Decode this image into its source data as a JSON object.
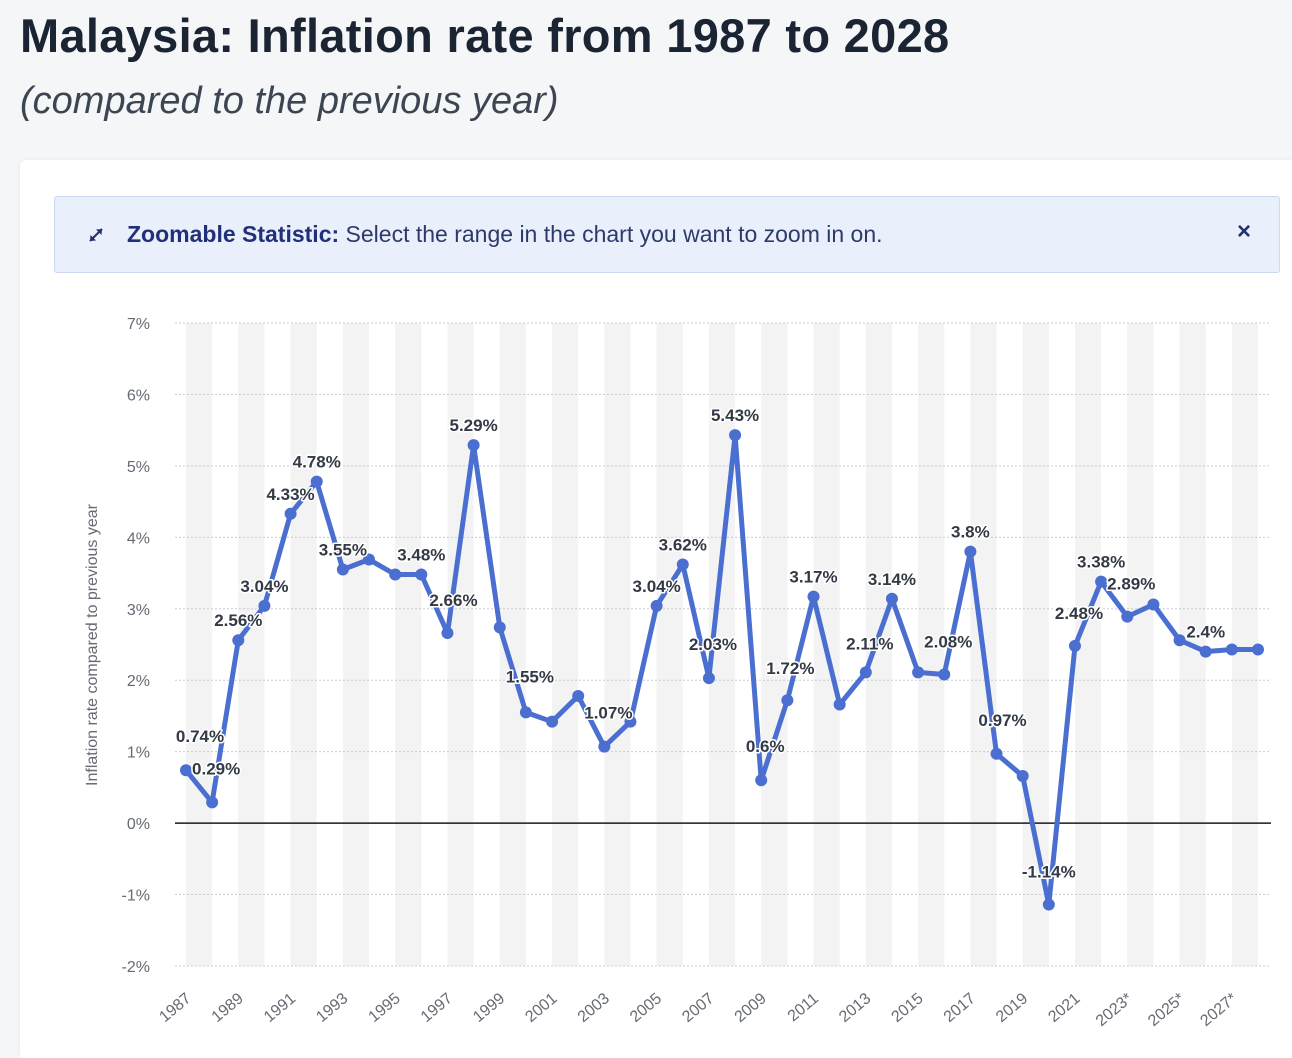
{
  "page": {
    "title": "Malaysia: Inflation rate from 1987 to 2028",
    "subtitle": "(compared to the previous year)"
  },
  "zoom_banner": {
    "icon": "expand-arrows-icon",
    "label_bold": "Zoomable Statistic:",
    "label_text": " Select the range in the chart you want to zoom in on.",
    "close_label": "×"
  },
  "colors": {
    "series": "#4a6fd1",
    "band": "#f3f3f3",
    "zero_line": "#1a1a1a",
    "banner_bg": "#eaf0fb"
  },
  "chart_data": {
    "type": "line",
    "title": "Malaysia: Inflation rate from 1987 to 2028",
    "ylabel": "Inflation rate compared to previous year",
    "xlabel": "",
    "ylim": [
      -2,
      7
    ],
    "yticks": [
      "7%",
      "6%",
      "5%",
      "4%",
      "3%",
      "2%",
      "1%",
      "0%",
      "-1%",
      "-2%"
    ],
    "yticks_values": [
      7,
      6,
      5,
      4,
      3,
      2,
      1,
      0,
      -1,
      -2
    ],
    "grid": true,
    "x": [
      1987,
      1988,
      1989,
      1990,
      1991,
      1992,
      1993,
      1994,
      1995,
      1996,
      1997,
      1998,
      1999,
      2000,
      2001,
      2002,
      2003,
      2004,
      2005,
      2006,
      2007,
      2008,
      2009,
      2010,
      2011,
      2012,
      2013,
      2014,
      2015,
      2016,
      2017,
      2018,
      2019,
      2020,
      2021,
      2022,
      2023,
      2024,
      2025,
      2026,
      2027,
      2028
    ],
    "xtick_labels": [
      "1987",
      "1989",
      "1991",
      "1993",
      "1995",
      "1997",
      "1999",
      "2001",
      "2003",
      "2005",
      "2007",
      "2009",
      "2011",
      "2013",
      "2015",
      "2017",
      "2019",
      "2021",
      "2023*",
      "2025*",
      "2027*"
    ],
    "xtick_years": [
      1987,
      1989,
      1991,
      1993,
      1995,
      1997,
      1999,
      2001,
      2003,
      2005,
      2007,
      2009,
      2011,
      2013,
      2015,
      2017,
      2019,
      2021,
      2023,
      2025,
      2027
    ],
    "series": [
      {
        "values": [
          0.74,
          0.29,
          2.56,
          3.04,
          4.33,
          4.78,
          3.55,
          3.69,
          3.48,
          3.48,
          2.66,
          5.29,
          2.74,
          1.55,
          1.42,
          1.78,
          1.07,
          1.42,
          3.04,
          3.62,
          2.03,
          5.43,
          0.6,
          1.72,
          3.17,
          1.66,
          2.11,
          3.14,
          2.11,
          2.08,
          3.8,
          0.97,
          0.66,
          -1.14,
          2.48,
          3.38,
          2.89,
          3.06,
          2.56,
          2.4,
          2.43,
          2.43
        ]
      }
    ],
    "data_labels": [
      {
        "year": 1987,
        "text": "0.74%"
      },
      {
        "year": 1988,
        "text": "0.29%"
      },
      {
        "year": 1989,
        "text": "2.56%"
      },
      {
        "year": 1990,
        "text": "3.04%"
      },
      {
        "year": 1991,
        "text": "4.33%"
      },
      {
        "year": 1992,
        "text": "4.78%"
      },
      {
        "year": 1993,
        "text": "3.55%"
      },
      {
        "year": 1996,
        "text": "3.48%"
      },
      {
        "year": 1997,
        "text": "2.66%"
      },
      {
        "year": 1998,
        "text": "5.29%"
      },
      {
        "year": 2000,
        "text": "1.55%"
      },
      {
        "year": 2003,
        "text": "1.07%"
      },
      {
        "year": 2005,
        "text": "3.04%"
      },
      {
        "year": 2006,
        "text": "3.62%"
      },
      {
        "year": 2007,
        "text": "2.03%"
      },
      {
        "year": 2008,
        "text": "5.43%"
      },
      {
        "year": 2009,
        "text": "0.6%"
      },
      {
        "year": 2010,
        "text": "1.72%"
      },
      {
        "year": 2011,
        "text": "3.17%"
      },
      {
        "year": 2013,
        "text": "2.11%"
      },
      {
        "year": 2014,
        "text": "3.14%"
      },
      {
        "year": 2016,
        "text": "2.08%"
      },
      {
        "year": 2017,
        "text": "3.8%"
      },
      {
        "year": 2018,
        "text": "0.97%"
      },
      {
        "year": 2020,
        "text": "-1.14%"
      },
      {
        "year": 2021,
        "text": "2.48%"
      },
      {
        "year": 2022,
        "text": "3.38%"
      },
      {
        "year": 2023,
        "text": "2.89%"
      },
      {
        "year": 2026,
        "text": "2.4%"
      }
    ]
  }
}
